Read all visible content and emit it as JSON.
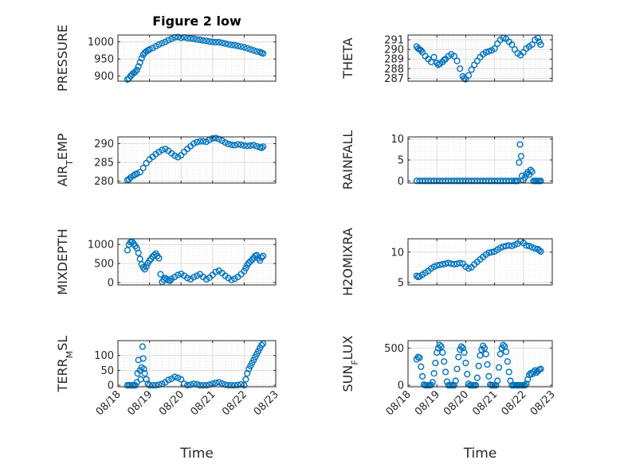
{
  "figure_title": "Figure 2 low",
  "x_axis_label": "Time",
  "x_tick_labels": [
    "08/18",
    "08/19",
    "08/20",
    "08/21",
    "08/22",
    "08/23"
  ],
  "marker_color": "#0072BD",
  "chart_data": [
    {
      "type": "scatter",
      "title": "Figure 2 low",
      "ylabel": "PRESSURE",
      "xlabel": "",
      "xlim": [
        0,
        5
      ],
      "ylim": [
        885,
        1020
      ],
      "yticks": [
        900,
        950,
        1000
      ],
      "ytick_labels": [
        "900",
        "950",
        "1000"
      ],
      "grid": true,
      "x": [
        0.3,
        0.35,
        0.4,
        0.45,
        0.5,
        0.55,
        0.6,
        0.65,
        0.7,
        0.75,
        0.8,
        0.85,
        0.9,
        0.95,
        1.0,
        1.1,
        1.2,
        1.3,
        1.4,
        1.5,
        1.6,
        1.7,
        1.8,
        1.9,
        2.0,
        2.1,
        2.2,
        2.3,
        2.4,
        2.5,
        2.6,
        2.7,
        2.8,
        2.9,
        3.0,
        3.1,
        3.2,
        3.3,
        3.4,
        3.5,
        3.6,
        3.7,
        3.8,
        3.9,
        4.0,
        4.1,
        4.2,
        4.3,
        4.4,
        4.5,
        4.55,
        4.6
      ],
      "y": [
        890,
        893,
        900,
        905,
        909,
        912,
        918,
        928,
        940,
        952,
        962,
        968,
        972,
        975,
        978,
        982,
        987,
        992,
        996,
        1000,
        1005,
        1009,
        1013,
        1014,
        1012,
        1013,
        1011,
        1010,
        1009,
        1007,
        1006,
        1004,
        1003,
        1001,
        1000,
        999,
        999,
        997,
        995,
        993,
        991,
        990,
        988,
        986,
        984,
        981,
        978,
        975,
        972,
        970,
        968,
        966
      ]
    },
    {
      "type": "scatter",
      "ylabel": "THETA",
      "xlabel": "",
      "xlim": [
        0,
        5
      ],
      "ylim": [
        286.7,
        291.5
      ],
      "yticks": [
        287,
        288,
        289,
        290,
        291
      ],
      "ytick_labels": [
        "287",
        "288",
        "289",
        "290",
        "291"
      ],
      "grid": true,
      "x": [
        0.3,
        0.35,
        0.4,
        0.45,
        0.5,
        0.6,
        0.7,
        0.8,
        0.9,
        1.0,
        1.05,
        1.1,
        1.2,
        1.25,
        1.3,
        1.4,
        1.5,
        1.6,
        1.7,
        1.8,
        1.9,
        1.95,
        2.0,
        2.1,
        2.2,
        2.3,
        2.4,
        2.5,
        2.6,
        2.7,
        2.8,
        2.9,
        3.0,
        3.1,
        3.2,
        3.3,
        3.4,
        3.5,
        3.6,
        3.7,
        3.8,
        3.9,
        4.0,
        4.1,
        4.2,
        4.3,
        4.4,
        4.5,
        4.55,
        4.6
      ],
      "y": [
        290.3,
        290.1,
        290.0,
        289.9,
        289.7,
        289.3,
        289.0,
        288.7,
        289.2,
        288.6,
        288.4,
        288.5,
        288.7,
        288.9,
        289.0,
        289.3,
        289.5,
        289.3,
        288.8,
        288.0,
        287.2,
        287.0,
        286.9,
        287.3,
        287.9,
        288.4,
        288.8,
        289.2,
        289.5,
        289.7,
        289.8,
        289.9,
        290.1,
        290.6,
        291.0,
        291.2,
        291.1,
        290.8,
        290.5,
        290.0,
        289.6,
        289.4,
        289.7,
        290.1,
        290.3,
        290.5,
        291.0,
        291.2,
        290.8,
        290.5
      ]
    },
    {
      "type": "scatter",
      "ylabel": "AIR_T EMP",
      "xlabel": "",
      "xlim": [
        0,
        5
      ],
      "ylim": [
        279.5,
        291.8
      ],
      "yticks": [
        280,
        285,
        290
      ],
      "ytick_labels": [
        "280",
        "285",
        "290"
      ],
      "grid": true,
      "x": [
        0.3,
        0.35,
        0.4,
        0.5,
        0.55,
        0.6,
        0.7,
        0.8,
        0.9,
        1.0,
        1.1,
        1.2,
        1.3,
        1.4,
        1.5,
        1.6,
        1.7,
        1.8,
        1.9,
        2.0,
        2.1,
        2.2,
        2.3,
        2.4,
        2.5,
        2.6,
        2.7,
        2.8,
        2.9,
        3.0,
        3.1,
        3.2,
        3.3,
        3.4,
        3.5,
        3.6,
        3.7,
        3.8,
        3.9,
        4.0,
        4.1,
        4.2,
        4.3,
        4.4,
        4.5,
        4.55,
        4.6
      ],
      "y": [
        280.3,
        280.5,
        281.0,
        281.5,
        281.8,
        282.0,
        282.4,
        283.5,
        284.8,
        285.8,
        286.5,
        287.2,
        287.8,
        288.3,
        288.6,
        288.1,
        287.4,
        286.8,
        286.4,
        286.9,
        287.8,
        288.6,
        289.3,
        290.0,
        290.4,
        290.6,
        290.6,
        290.5,
        291.0,
        291.4,
        291.5,
        291.2,
        290.8,
        290.3,
        289.9,
        289.7,
        289.6,
        289.8,
        289.7,
        289.5,
        289.4,
        289.5,
        289.6,
        289.3,
        289.0,
        288.9,
        289.2
      ]
    },
    {
      "type": "scatter",
      "ylabel": "RAINFALL",
      "xlabel": "",
      "xlim": [
        0,
        5
      ],
      "ylim": [
        -0.5,
        10.5
      ],
      "yticks": [
        0,
        5,
        10
      ],
      "ytick_labels": [
        "0",
        "5",
        "10"
      ],
      "grid": true,
      "x": [
        0.3,
        0.4,
        0.5,
        0.6,
        0.7,
        0.8,
        0.9,
        1.0,
        1.1,
        1.2,
        1.3,
        1.4,
        1.5,
        1.6,
        1.7,
        1.8,
        1.9,
        2.0,
        2.1,
        2.2,
        2.3,
        2.4,
        2.5,
        2.6,
        2.7,
        2.8,
        2.9,
        3.0,
        3.1,
        3.2,
        3.3,
        3.4,
        3.5,
        3.6,
        3.7,
        3.75,
        3.8,
        3.85,
        3.88,
        3.92,
        3.95,
        4.0,
        4.05,
        4.1,
        4.15,
        4.2,
        4.25,
        4.3,
        4.35,
        4.4,
        4.45,
        4.5,
        4.55,
        4.6
      ],
      "y": [
        0,
        0,
        0,
        0,
        0,
        0,
        0,
        0,
        0,
        0,
        0,
        0,
        0,
        0,
        0,
        0,
        0,
        0,
        0,
        0,
        0,
        0,
        0,
        0,
        0,
        0,
        0,
        0,
        0,
        0,
        0,
        0,
        0,
        0,
        0,
        0,
        0,
        4.4,
        8.7,
        5.9,
        1.2,
        0.2,
        0.8,
        1.6,
        2.1,
        1.5,
        2.6,
        2.2,
        0,
        0,
        0,
        0,
        0,
        0
      ]
    },
    {
      "type": "scatter",
      "ylabel": "MIXDEPTH",
      "xlabel": "",
      "xlim": [
        0,
        5
      ],
      "ylim": [
        -60,
        1150
      ],
      "yticks": [
        0,
        500,
        1000
      ],
      "ytick_labels": [
        "0",
        "500",
        "1000"
      ],
      "grid": true,
      "x": [
        0.3,
        0.35,
        0.4,
        0.45,
        0.5,
        0.55,
        0.6,
        0.65,
        0.7,
        0.75,
        0.8,
        0.85,
        0.9,
        0.95,
        1.0,
        1.05,
        1.1,
        1.15,
        1.2,
        1.25,
        1.3,
        1.35,
        1.4,
        1.45,
        1.5,
        1.55,
        1.6,
        1.65,
        1.7,
        1.8,
        1.9,
        2.0,
        2.1,
        2.2,
        2.3,
        2.4,
        2.5,
        2.6,
        2.7,
        2.8,
        2.9,
        3.0,
        3.1,
        3.2,
        3.3,
        3.4,
        3.5,
        3.6,
        3.7,
        3.8,
        3.9,
        4.0,
        4.05,
        4.1,
        4.15,
        4.2,
        4.25,
        4.3,
        4.35,
        4.4,
        4.45,
        4.5,
        4.55,
        4.6
      ],
      "y": [
        850,
        1000,
        1060,
        1070,
        1020,
        960,
        900,
        780,
        620,
        480,
        400,
        350,
        420,
        510,
        580,
        620,
        680,
        720,
        760,
        700,
        640,
        220,
        20,
        80,
        120,
        90,
        60,
        50,
        100,
        150,
        200,
        230,
        180,
        120,
        90,
        140,
        180,
        220,
        150,
        90,
        130,
        200,
        280,
        310,
        250,
        180,
        120,
        70,
        100,
        150,
        220,
        300,
        380,
        460,
        520,
        560,
        600,
        650,
        700,
        720,
        640,
        580,
        660,
        700
      ]
    },
    {
      "type": "scatter",
      "ylabel": "H2OMIXRA",
      "xlabel": "",
      "xlim": [
        0,
        5
      ],
      "ylim": [
        4.6,
        12.2
      ],
      "yticks": [
        5,
        10
      ],
      "ytick_labels": [
        "5",
        "10"
      ],
      "grid": true,
      "x": [
        0.3,
        0.35,
        0.4,
        0.5,
        0.6,
        0.7,
        0.8,
        0.9,
        1.0,
        1.1,
        1.2,
        1.3,
        1.4,
        1.5,
        1.6,
        1.7,
        1.8,
        1.9,
        2.0,
        2.1,
        2.2,
        2.3,
        2.4,
        2.5,
        2.6,
        2.7,
        2.8,
        2.9,
        3.0,
        3.1,
        3.2,
        3.3,
        3.4,
        3.5,
        3.6,
        3.7,
        3.8,
        3.9,
        4.0,
        4.1,
        4.2,
        4.3,
        4.4,
        4.5,
        4.55,
        4.6
      ],
      "y": [
        6.1,
        5.9,
        6.0,
        6.3,
        6.6,
        6.9,
        7.3,
        7.6,
        7.8,
        7.9,
        8.0,
        8.1,
        8.2,
        8.1,
        8.0,
        8.1,
        8.2,
        8.1,
        7.6,
        7.3,
        7.5,
        8.0,
        8.4,
        8.8,
        9.2,
        9.6,
        9.9,
        10.0,
        10.1,
        10.4,
        10.7,
        10.9,
        11.0,
        11.1,
        11.0,
        11.2,
        11.4,
        11.8,
        11.5,
        11.1,
        11.0,
        10.8,
        10.6,
        10.5,
        10.3,
        10.1
      ]
    },
    {
      "type": "scatter",
      "ylabel": "TERR_M SL",
      "xlabel": "",
      "xlim": [
        0,
        5
      ],
      "ylim": [
        -5,
        150
      ],
      "yticks": [
        0,
        50,
        100
      ],
      "ytick_labels": [
        "0",
        "50",
        "100"
      ],
      "grid": true,
      "x": [
        0.3,
        0.35,
        0.4,
        0.45,
        0.5,
        0.55,
        0.6,
        0.62,
        0.65,
        0.7,
        0.72,
        0.75,
        0.78,
        0.8,
        0.82,
        0.85,
        0.9,
        0.95,
        1.0,
        1.1,
        1.2,
        1.3,
        1.4,
        1.5,
        1.6,
        1.7,
        1.8,
        1.9,
        2.0,
        2.1,
        2.2,
        2.3,
        2.4,
        2.5,
        2.6,
        2.7,
        2.8,
        2.9,
        3.0,
        3.1,
        3.2,
        3.3,
        3.4,
        3.5,
        3.6,
        3.7,
        3.8,
        3.9,
        4.0,
        4.05,
        4.1,
        4.15,
        4.2,
        4.25,
        4.3,
        4.35,
        4.4,
        4.45,
        4.5,
        4.55,
        4.6
      ],
      "y": [
        0,
        0,
        0,
        0,
        0,
        0,
        10,
        40,
        85,
        50,
        20,
        60,
        130,
        90,
        55,
        40,
        20,
        5,
        0,
        0,
        0,
        2,
        5,
        10,
        18,
        22,
        28,
        25,
        20,
        5,
        0,
        2,
        5,
        3,
        0,
        0,
        0,
        2,
        5,
        8,
        10,
        6,
        2,
        0,
        0,
        0,
        1,
        3,
        0,
        20,
        40,
        55,
        65,
        75,
        85,
        95,
        105,
        115,
        125,
        135,
        140
      ]
    },
    {
      "type": "scatter",
      "ylabel": "SUN_F LUX",
      "xlabel": "Time",
      "xlim": [
        0,
        5
      ],
      "ylim": [
        -20,
        600
      ],
      "yticks": [
        0,
        500
      ],
      "ytick_labels": [
        "0",
        "500"
      ],
      "grid": true,
      "x": [
        0.3,
        0.35,
        0.4,
        0.45,
        0.5,
        0.55,
        0.6,
        0.65,
        0.7,
        0.75,
        0.8,
        0.85,
        0.9,
        0.95,
        1.0,
        1.05,
        1.1,
        1.15,
        1.2,
        1.25,
        1.3,
        1.35,
        1.4,
        1.45,
        1.5,
        1.55,
        1.6,
        1.65,
        1.7,
        1.75,
        1.8,
        1.85,
        1.9,
        1.95,
        2.0,
        2.05,
        2.1,
        2.15,
        2.2,
        2.25,
        2.3,
        2.35,
        2.4,
        2.45,
        2.5,
        2.55,
        2.6,
        2.65,
        2.7,
        2.75,
        2.8,
        2.85,
        2.9,
        2.95,
        3.0,
        3.05,
        3.1,
        3.15,
        3.2,
        3.25,
        3.3,
        3.35,
        3.4,
        3.45,
        3.5,
        3.55,
        3.6,
        3.65,
        3.7,
        3.75,
        3.8,
        3.85,
        3.9,
        3.95,
        4.0,
        4.05,
        4.1,
        4.15,
        4.2,
        4.25,
        4.3,
        4.35,
        4.4,
        4.45,
        4.5,
        4.55,
        4.6
      ],
      "y": [
        350,
        380,
        370,
        250,
        120,
        10,
        0,
        0,
        0,
        0,
        5,
        40,
        160,
        300,
        440,
        500,
        540,
        520,
        440,
        320,
        180,
        50,
        0,
        0,
        0,
        0,
        0,
        60,
        220,
        380,
        480,
        520,
        500,
        440,
        300,
        150,
        20,
        0,
        0,
        0,
        0,
        0,
        100,
        260,
        400,
        480,
        530,
        500,
        420,
        280,
        120,
        10,
        0,
        0,
        0,
        0,
        60,
        240,
        420,
        500,
        540,
        520,
        450,
        320,
        180,
        60,
        0,
        0,
        0,
        0,
        0,
        0,
        0,
        0,
        0,
        0,
        20,
        80,
        140,
        160,
        150,
        180,
        200,
        170,
        190,
        210,
        220
      ]
    }
  ]
}
